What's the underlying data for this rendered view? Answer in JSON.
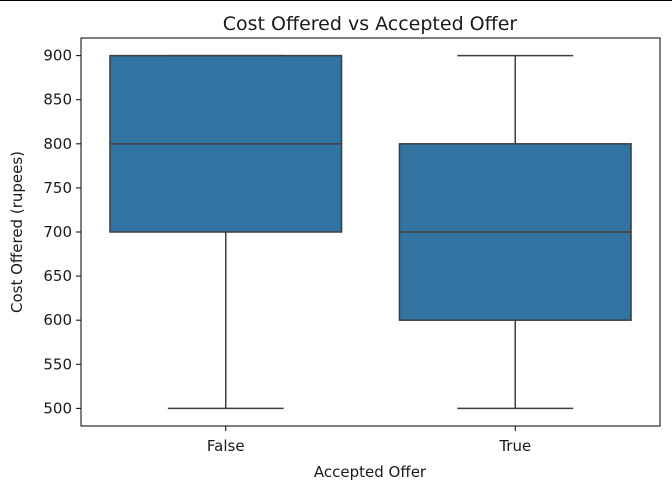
{
  "chart_data": {
    "type": "box",
    "title": "Cost Offered vs Accepted Offer",
    "xlabel": "Accepted Offer",
    "ylabel": "Cost Offered (rupees)",
    "categories": [
      "False",
      "True"
    ],
    "ylim": [
      480,
      920
    ],
    "yticks": [
      500,
      550,
      600,
      650,
      700,
      750,
      800,
      850,
      900
    ],
    "boxes": [
      {
        "category": "False",
        "whisker_low": 500,
        "q1": 700,
        "median": 800,
        "q3": 900,
        "whisker_high": 900
      },
      {
        "category": "True",
        "whisker_low": 500,
        "q1": 600,
        "median": 700,
        "q3": 800,
        "whisker_high": 900
      }
    ],
    "box_color": "#3274a1",
    "line_color": "#3f3f3f",
    "grid": false,
    "legend": "none"
  }
}
